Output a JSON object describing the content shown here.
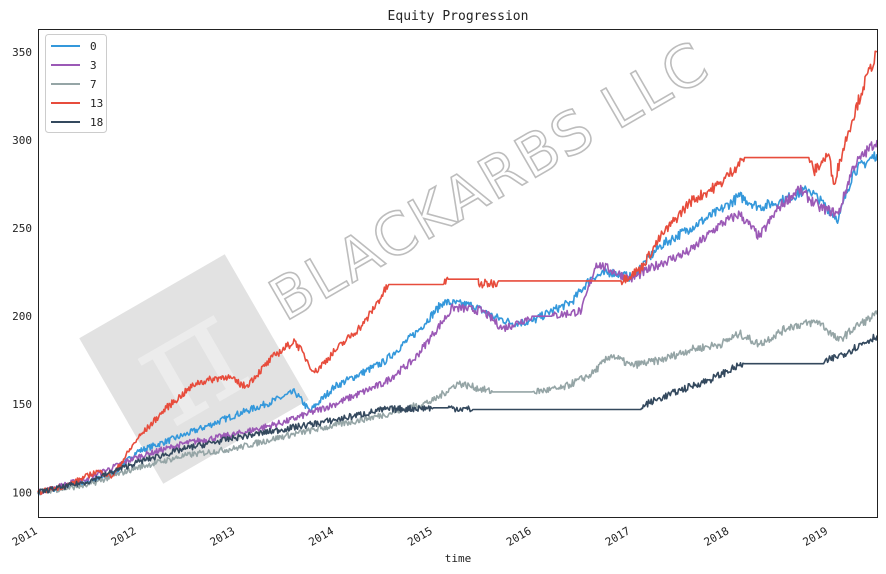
{
  "chart_data": {
    "type": "line",
    "title": "Equity Progression",
    "xlabel": "time",
    "ylabel": "",
    "xlim": [
      2011.0,
      2019.49
    ],
    "ylim": [
      86,
      363
    ],
    "xticks": [
      "2011",
      "2012",
      "2013",
      "2014",
      "2015",
      "2016",
      "2017",
      "2018",
      "2019"
    ],
    "yticks": [
      100,
      150,
      200,
      250,
      300,
      350
    ],
    "grid": false,
    "legend_position": "top-left",
    "watermark": "BLACKARBS LLC",
    "series": [
      {
        "name": "0",
        "color": "#3498db",
        "x": [
          2011.0,
          2011.5,
          2011.75,
          2012.0,
          2012.5,
          2013.0,
          2013.3,
          2013.6,
          2013.75,
          2014.0,
          2014.5,
          2014.85,
          2015.1,
          2015.4,
          2015.6,
          2015.8,
          2016.0,
          2016.2,
          2016.4,
          2016.6,
          2016.8,
          2017.0,
          2017.3,
          2017.6,
          2017.9,
          2018.1,
          2018.3,
          2018.5,
          2018.8,
          2019.1,
          2019.25,
          2019.49
        ],
        "y": [
          100,
          106,
          110,
          123,
          133,
          144,
          150,
          157,
          146,
          160,
          174,
          192,
          208,
          206,
          200,
          196,
          197,
          203,
          208,
          222,
          225,
          222,
          240,
          250,
          260,
          268,
          262,
          265,
          272,
          255,
          282,
          292
        ]
      },
      {
        "name": "3",
        "color": "#9b59b6",
        "x": [
          2011.0,
          2011.5,
          2012.0,
          2012.5,
          2013.0,
          2013.5,
          2014.0,
          2014.5,
          2014.8,
          2015.0,
          2015.2,
          2015.5,
          2015.7,
          2015.8,
          2016.0,
          2016.2,
          2016.5,
          2016.65,
          2016.8,
          2017.0,
          2017.3,
          2017.6,
          2017.9,
          2018.1,
          2018.3,
          2018.5,
          2018.7,
          2018.9,
          2019.1,
          2019.25,
          2019.49
        ],
        "y": [
          100,
          108,
          120,
          128,
          133,
          140,
          150,
          162,
          175,
          190,
          205,
          203,
          193,
          195,
          200,
          200,
          203,
          230,
          226,
          221,
          230,
          237,
          252,
          258,
          245,
          262,
          272,
          262,
          258,
          285,
          300
        ]
      },
      {
        "name": "7",
        "color": "#95a5a6",
        "x": [
          2011.0,
          2011.5,
          2012.0,
          2012.5,
          2013.0,
          2013.5,
          2014.0,
          2014.5,
          2015.0,
          2015.25,
          2015.6,
          2016.0,
          2016.3,
          2016.6,
          2016.8,
          2017.0,
          2017.3,
          2017.6,
          2017.9,
          2018.1,
          2018.3,
          2018.6,
          2018.9,
          2019.1,
          2019.3,
          2019.49
        ],
        "y": [
          100,
          104,
          114,
          121,
          125,
          132,
          138,
          144,
          152,
          162,
          157,
          157,
          159,
          167,
          178,
          172,
          175,
          181,
          184,
          190,
          184,
          194,
          197,
          186,
          195,
          201
        ]
      },
      {
        "name": "13",
        "color": "#e74c3c",
        "x": [
          2011.0,
          2011.3,
          2011.6,
          2011.75,
          2012.0,
          2012.3,
          2012.6,
          2012.9,
          2013.1,
          2013.4,
          2013.6,
          2013.8,
          2014.0,
          2014.3,
          2014.55,
          2015.1,
          2015.15,
          2015.45,
          2015.46,
          2015.65,
          2015.66,
          2016.9,
          2017.1,
          2017.3,
          2017.6,
          2017.9,
          2018.15,
          2018.8,
          2018.85,
          2019.0,
          2019.05,
          2019.2,
          2019.35,
          2019.49
        ],
        "y": [
          100,
          104,
          112,
          109,
          130,
          148,
          162,
          166,
          160,
          178,
          186,
          168,
          180,
          196,
          218,
          218,
          221,
          221,
          218,
          219,
          220,
          220,
          227,
          245,
          265,
          275,
          290,
          290,
          282,
          292,
          275,
          305,
          330,
          350
        ]
      },
      {
        "name": "18",
        "color": "#34495e",
        "x": [
          2011.0,
          2011.5,
          2012.0,
          2012.5,
          2013.0,
          2013.5,
          2014.0,
          2014.5,
          2015.0,
          2015.15,
          2015.4,
          2016.0,
          2017.1,
          2017.15,
          2017.5,
          2017.8,
          2018.1,
          2018.15,
          2018.95,
          2019.0,
          2019.2,
          2019.49
        ],
        "y": [
          100,
          106,
          117,
          125,
          131,
          136,
          141,
          147,
          148,
          148,
          147,
          147,
          147,
          150,
          158,
          164,
          172,
          173,
          173,
          175,
          180,
          189
        ]
      }
    ]
  }
}
